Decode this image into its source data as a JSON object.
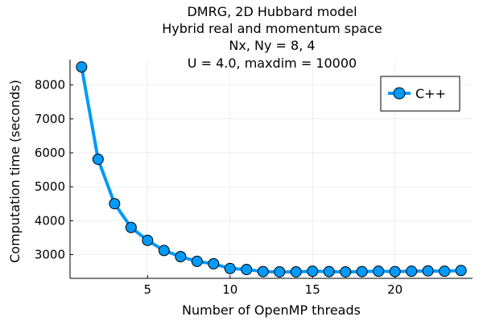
{
  "chart_data": {
    "type": "line",
    "title_lines": [
      "DMRG, 2D Hubbard model",
      "Hybrid real and momentum space",
      "Nx, Ny = 8, 4",
      "U = 4.0, maxdim = 10000"
    ],
    "xlabel": "Number of OpenMP threads",
    "ylabel": "Computation time (seconds)",
    "xlim": [
      0.3,
      24.7
    ],
    "ylim": [
      2300,
      8750
    ],
    "xticks": [
      5,
      10,
      15,
      20
    ],
    "yticks": [
      3000,
      4000,
      5000,
      6000,
      7000,
      8000
    ],
    "grid": true,
    "legend_position": "top-right",
    "series": [
      {
        "name": "C++",
        "color": "#009AFA",
        "marker": "circle",
        "x": [
          1,
          2,
          3,
          4,
          5,
          6,
          7,
          8,
          9,
          10,
          11,
          12,
          13,
          14,
          15,
          16,
          17,
          18,
          19,
          20,
          21,
          22,
          23,
          24
        ],
        "y": [
          8530,
          5810,
          4500,
          3800,
          3420,
          3120,
          2940,
          2800,
          2730,
          2590,
          2560,
          2500,
          2490,
          2490,
          2510,
          2500,
          2490,
          2500,
          2510,
          2500,
          2510,
          2520,
          2510,
          2530
        ]
      }
    ]
  }
}
